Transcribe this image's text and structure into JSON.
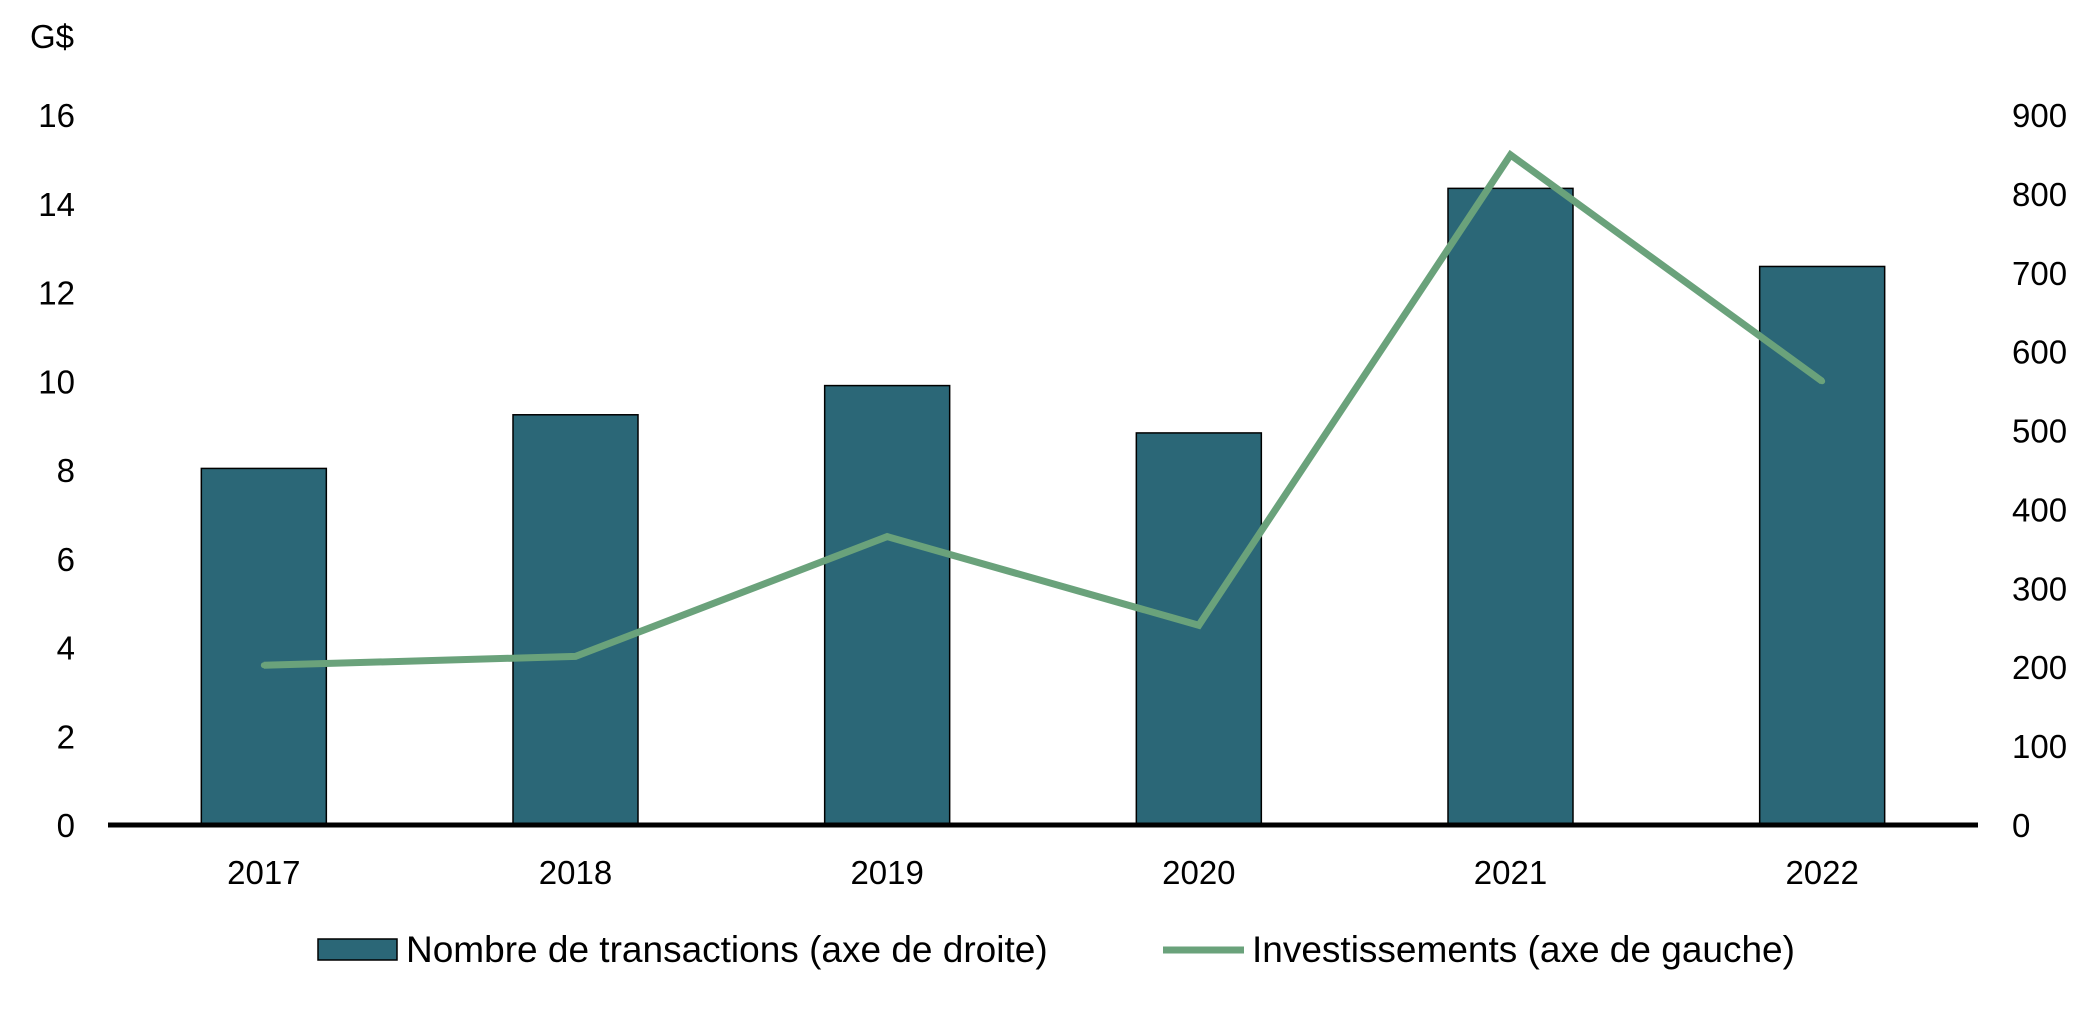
{
  "chart_data": {
    "type": "bar",
    "categories": [
      "2017",
      "2018",
      "2019",
      "2020",
      "2021",
      "2022"
    ],
    "left_axis": {
      "unit_label": "G$",
      "range": [
        0,
        16
      ],
      "ticks": [
        "0",
        "2",
        "4",
        "6",
        "8",
        "10",
        "12",
        "14",
        "16"
      ]
    },
    "right_axis": {
      "range": [
        0,
        900
      ],
      "ticks": [
        "0",
        "100",
        "200",
        "300",
        "400",
        "500",
        "600",
        "700",
        "800",
        "900"
      ]
    },
    "series": [
      {
        "name": "Nombre de transactions (axe de droite)",
        "type": "bar",
        "axis": "right",
        "color": "#2b6777",
        "values": [
          452,
          520,
          557,
          497,
          807,
          708
        ]
      },
      {
        "name": "Investissements (axe de gauche)",
        "type": "line",
        "axis": "left",
        "color": "#6aa27b",
        "values": [
          3.6,
          3.8,
          6.5,
          4.5,
          15.1,
          10.0
        ]
      }
    ],
    "grid": false,
    "legend": "bottom"
  }
}
